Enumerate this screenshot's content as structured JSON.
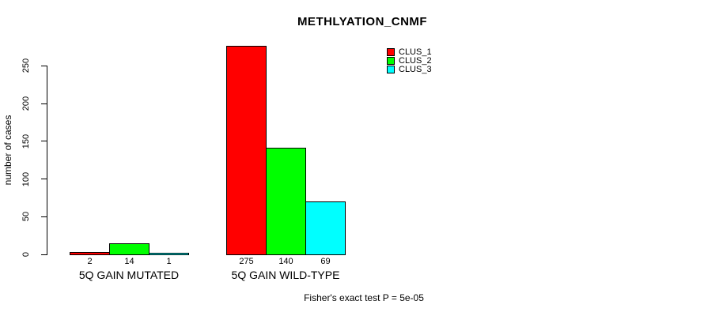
{
  "chart_data": {
    "type": "bar",
    "title": "METHLYATION_CNMF",
    "ylabel": "number of cases",
    "xlabel": "",
    "categories": [
      "5Q GAIN MUTATED",
      "5Q GAIN WILD-TYPE"
    ],
    "series": [
      {
        "name": "CLUS_1",
        "color": "#FF0000",
        "values": [
          2,
          275
        ]
      },
      {
        "name": "CLUS_2",
        "color": "#00FF00",
        "values": [
          14,
          140
        ]
      },
      {
        "name": "CLUS_3",
        "color": "#00FFFF",
        "values": [
          1,
          69
        ]
      }
    ],
    "yticks": [
      0,
      50,
      100,
      150,
      200,
      250
    ],
    "ylim": [
      0,
      280
    ],
    "grid": false,
    "bar_value_labels_shown": true,
    "legend_position": "top-right",
    "annotation": "Fisher's exact test P = 5e-05"
  }
}
